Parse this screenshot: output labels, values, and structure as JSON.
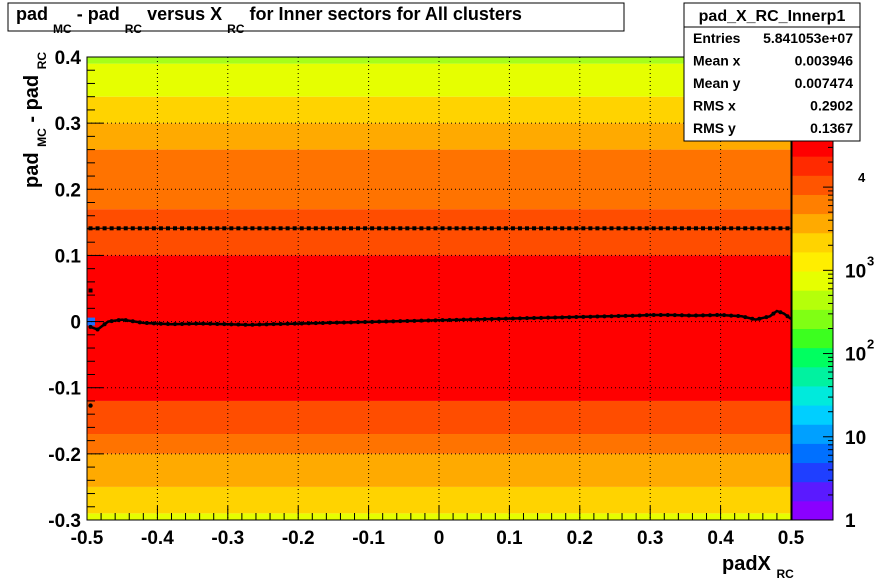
{
  "chart_data": {
    "type": "heatmap",
    "title": {
      "parts": [
        "pad",
        "MC",
        " - pad",
        "RC",
        " versus X",
        "RC",
        " for Inner sectors for All clusters"
      ]
    },
    "xlabel": {
      "main": "padX",
      "sub": "RC"
    },
    "ylabel": {
      "main": "pad",
      "sub1": "MC",
      "mid": " - pad",
      "sub2": "RC"
    },
    "xlim": [
      -0.5,
      0.5
    ],
    "ylim": [
      -0.3,
      0.4
    ],
    "xticks": [
      {
        "v": -0.5,
        "label": "-0.5"
      },
      {
        "v": -0.4,
        "label": "-0.4"
      },
      {
        "v": -0.3,
        "label": "-0.3"
      },
      {
        "v": -0.2,
        "label": "-0.2"
      },
      {
        "v": -0.1,
        "label": "-0.1"
      },
      {
        "v": 0,
        "label": "0"
      },
      {
        "v": 0.1,
        "label": "0.1"
      },
      {
        "v": 0.2,
        "label": "0.2"
      },
      {
        "v": 0.3,
        "label": "0.3"
      },
      {
        "v": 0.4,
        "label": "0.4"
      },
      {
        "v": 0.5,
        "label": "0.5"
      }
    ],
    "yticks": [
      {
        "v": -0.3,
        "label": "-0.3"
      },
      {
        "v": -0.2,
        "label": "-0.2"
      },
      {
        "v": -0.1,
        "label": "-0.1"
      },
      {
        "v": 0,
        "label": "0"
      },
      {
        "v": 0.1,
        "label": "0.1"
      },
      {
        "v": 0.2,
        "label": "0.2"
      },
      {
        "v": 0.3,
        "label": "0.3"
      },
      {
        "v": 0.4,
        "label": "0.4"
      }
    ],
    "grid": true,
    "zscale": "log",
    "zlim": [
      1,
      40000
    ],
    "zticks": [
      {
        "v": 1,
        "label": "1",
        "exp": ""
      },
      {
        "v": 10,
        "label": "10",
        "exp": ""
      },
      {
        "v": 100,
        "label": "10",
        "exp": "2"
      },
      {
        "v": 1000,
        "label": "10",
        "exp": "3"
      },
      {
        "v": 10000,
        "label": "",
        "exp": "4"
      }
    ],
    "heatmap_bands": [
      {
        "y0": -0.3,
        "y1": -0.29,
        "color": "#e6ff00"
      },
      {
        "y0": -0.29,
        "y1": -0.25,
        "color": "#ffd300"
      },
      {
        "y0": -0.25,
        "y1": -0.2,
        "color": "#ffaa00"
      },
      {
        "y0": -0.2,
        "y1": -0.17,
        "color": "#ff7300"
      },
      {
        "y0": -0.17,
        "y1": -0.12,
        "color": "#ff4d00"
      },
      {
        "y0": -0.12,
        "y1": 0.1,
        "color": "#ff0000"
      },
      {
        "y0": 0.1,
        "y1": 0.17,
        "color": "#ff4d00"
      },
      {
        "y0": 0.17,
        "y1": 0.26,
        "color": "#ff7300"
      },
      {
        "y0": 0.26,
        "y1": 0.3,
        "color": "#ffaa00"
      },
      {
        "y0": 0.3,
        "y1": 0.34,
        "color": "#ffd300"
      },
      {
        "y0": 0.34,
        "y1": 0.39,
        "color": "#e6ff00"
      },
      {
        "y0": 0.39,
        "y1": 0.4,
        "color": "#a6ff1a"
      }
    ],
    "palette": [
      "#8a00ff",
      "#5a1aff",
      "#1f3fff",
      "#0070ff",
      "#00a0ff",
      "#00cfff",
      "#00eadc",
      "#00f2a0",
      "#00ff60",
      "#3cff1f",
      "#80ff14",
      "#b5ff0a",
      "#e6ff00",
      "#ffee00",
      "#ffd300",
      "#ffaa00",
      "#ff7f00",
      "#ff5500",
      "#ff2a00",
      "#ff0000"
    ],
    "series": [
      {
        "kind": "mean-line",
        "x": [
          -0.495,
          -0.485,
          -0.47,
          -0.45,
          -0.42,
          -0.38,
          -0.34,
          -0.3,
          -0.27,
          -0.24,
          -0.2,
          -0.16,
          -0.12,
          -0.08,
          -0.04,
          0,
          0.04,
          0.08,
          0.12,
          0.16,
          0.2,
          0.24,
          0.28,
          0.3,
          0.33,
          0.36,
          0.4,
          0.43,
          0.45,
          0.47,
          0.48,
          0.49,
          0.5
        ],
        "y": [
          -0.008,
          -0.012,
          0.0,
          0.003,
          -0.002,
          -0.004,
          -0.003,
          -0.004,
          -0.005,
          -0.004,
          -0.003,
          -0.002,
          -0.001,
          0.0,
          0.001,
          0.002,
          0.003,
          0.004,
          0.005,
          0.006,
          0.007,
          0.008,
          0.009,
          0.01,
          0.01,
          0.009,
          0.01,
          0.008,
          0.003,
          0.008,
          0.016,
          0.012,
          0.004
        ]
      },
      {
        "kind": "upper-markers",
        "y": 0.141
      },
      {
        "kind": "outliers",
        "x": [
          -0.495,
          -0.495
        ],
        "y": 0.047,
        "y2": -0.127
      }
    ],
    "stats_box": {
      "title": "pad_X_RC_Innerp1",
      "rows": [
        {
          "label": "Entries",
          "value": "5.841053e+07"
        },
        {
          "label": "Mean x",
          "value": "0.003946"
        },
        {
          "label": "Mean y",
          "value": "0.007474"
        },
        {
          "label": "RMS x",
          "value": "0.2902"
        },
        {
          "label": "RMS y",
          "value": "0.1367"
        }
      ]
    }
  }
}
